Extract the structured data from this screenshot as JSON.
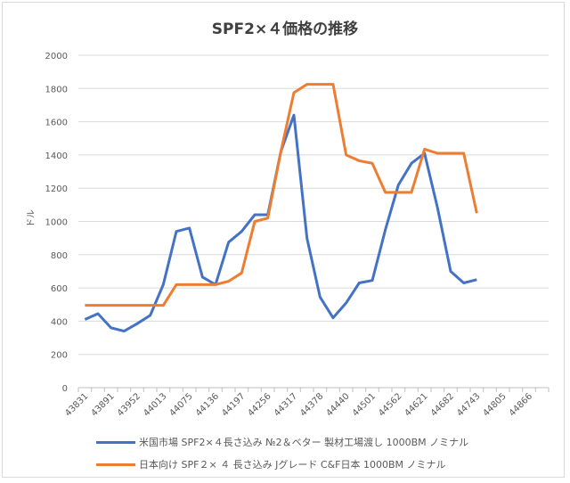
{
  "chart_data": {
    "type": "line",
    "title": "SPF2×４価格の推移",
    "ylabel": "ドル",
    "xlabel": "",
    "ylim": [
      0,
      2000
    ],
    "yticks": [
      0,
      200,
      400,
      600,
      800,
      1000,
      1200,
      1400,
      1600,
      1800,
      2000
    ],
    "xticks": [
      "43831",
      "43891",
      "43952",
      "44013",
      "44075",
      "44136",
      "44197",
      "44256",
      "44317",
      "44378",
      "44440",
      "44501",
      "44562",
      "44621",
      "44682",
      "44743",
      "44805",
      "44866"
    ],
    "x_category_count": 36,
    "grid": true,
    "legend_position": "bottom",
    "x": [
      43831,
      43862,
      43891,
      43922,
      43952,
      43983,
      44013,
      44044,
      44075,
      44105,
      44136,
      44166,
      44197,
      44228,
      44256,
      44287,
      44317,
      44348,
      44378,
      44409,
      44440,
      44470,
      44501,
      44531,
      44562,
      44593,
      44621,
      44652,
      44682,
      44713,
      44743
    ],
    "series": [
      {
        "name": "米国市場 SPF2×４長さ込み №2＆ベター 製材工場渡し 1000BM ノミナル",
        "color": "#4472c4",
        "values": [
          410,
          445,
          360,
          340,
          385,
          435,
          620,
          940,
          960,
          665,
          620,
          875,
          940,
          1040,
          1040,
          1420,
          1640,
          900,
          545,
          420,
          510,
          630,
          645,
          950,
          1220,
          1350,
          1410,
          1080,
          700,
          630,
          650
        ]
      },
      {
        "name": "日本向け SPF２× ４ 長さ込み Jグレード C&F日本 1000BM ノミナル",
        "color": "#ed7d31",
        "values": [
          495,
          495,
          495,
          495,
          495,
          495,
          495,
          620,
          620,
          620,
          620,
          640,
          690,
          1000,
          1020,
          1420,
          1775,
          1825,
          1825,
          1825,
          1400,
          1365,
          1350,
          1175,
          1175,
          1175,
          1435,
          1410,
          1410,
          1410,
          1050
        ]
      }
    ]
  }
}
